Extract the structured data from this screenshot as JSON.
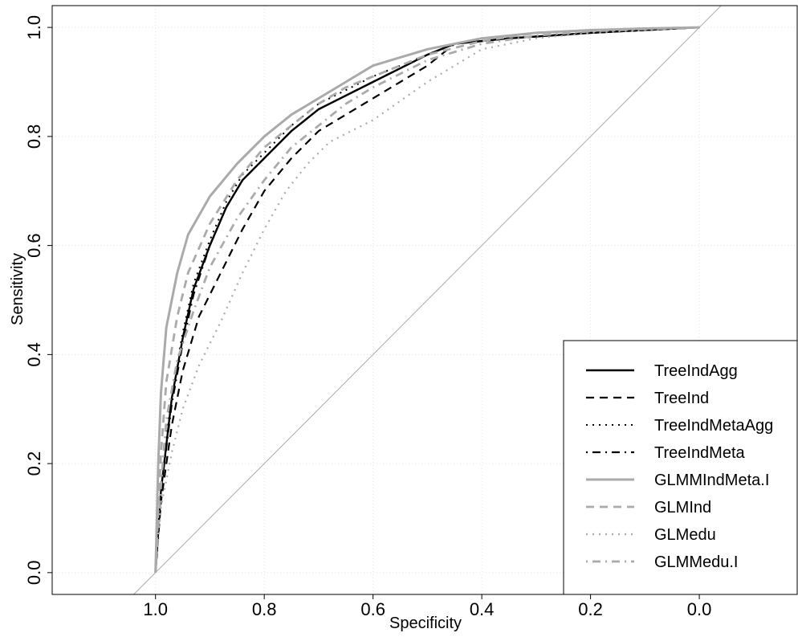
{
  "chart_data": {
    "type": "line",
    "title": "",
    "xlabel": "Specificity",
    "ylabel": "Sensitivity",
    "xlim": [
      1.19,
      -0.18
    ],
    "ylim": [
      -0.04,
      1.04
    ],
    "x_reversed": true,
    "grid": true,
    "legend_position": "bottom-right",
    "x_ticks": [
      1.0,
      0.8,
      0.6,
      0.4,
      0.2,
      0.0
    ],
    "x_tick_labels": [
      "1.0",
      "0.8",
      "0.6",
      "0.4",
      "0.2",
      "0.0"
    ],
    "y_ticks": [
      0.0,
      0.2,
      0.4,
      0.6,
      0.8,
      1.0
    ],
    "y_tick_labels": [
      "0.0",
      "0.2",
      "0.4",
      "0.6",
      "0.8",
      "1.0"
    ],
    "reference_line": {
      "from": [
        1.04,
        -0.04
      ],
      "to": [
        -0.04,
        1.04
      ],
      "color": "#aaaaaa"
    },
    "series": [
      {
        "name": "TreeIndAgg",
        "color": "#000000",
        "dash": "solid",
        "width": 2.4,
        "x": [
          1.0,
          0.99,
          0.97,
          0.95,
          0.93,
          0.9,
          0.87,
          0.84,
          0.8,
          0.75,
          0.7,
          0.6,
          0.5,
          0.45,
          0.35,
          0.2,
          0.0
        ],
        "y": [
          0.0,
          0.15,
          0.32,
          0.43,
          0.52,
          0.6,
          0.67,
          0.72,
          0.76,
          0.81,
          0.85,
          0.9,
          0.95,
          0.97,
          0.98,
          0.99,
          1.0
        ]
      },
      {
        "name": "TreeInd",
        "color": "#000000",
        "dash": "dashed",
        "width": 2.2,
        "x": [
          1.0,
          0.99,
          0.97,
          0.95,
          0.92,
          0.88,
          0.84,
          0.8,
          0.75,
          0.7,
          0.6,
          0.5,
          0.45,
          0.35,
          0.2,
          0.0
        ],
        "y": [
          0.0,
          0.13,
          0.27,
          0.37,
          0.47,
          0.55,
          0.63,
          0.7,
          0.76,
          0.81,
          0.87,
          0.93,
          0.97,
          0.98,
          0.99,
          1.0
        ]
      },
      {
        "name": "TreeIndMetaAgg",
        "color": "#000000",
        "dash": "dotted",
        "width": 2.0,
        "x": [
          1.0,
          0.99,
          0.97,
          0.95,
          0.93,
          0.9,
          0.87,
          0.84,
          0.8,
          0.75,
          0.7,
          0.6,
          0.5,
          0.45,
          0.35,
          0.2,
          0.0
        ],
        "y": [
          0.0,
          0.16,
          0.33,
          0.44,
          0.53,
          0.61,
          0.68,
          0.73,
          0.77,
          0.82,
          0.86,
          0.91,
          0.95,
          0.97,
          0.98,
          0.99,
          1.0
        ]
      },
      {
        "name": "TreeIndMeta",
        "color": "#000000",
        "dash": "dotdash",
        "width": 2.2,
        "x": [
          1.0,
          0.99,
          0.97,
          0.95,
          0.93,
          0.9,
          0.87,
          0.84,
          0.8,
          0.75,
          0.7,
          0.6,
          0.5,
          0.45,
          0.35,
          0.2,
          0.0
        ],
        "y": [
          0.0,
          0.15,
          0.31,
          0.42,
          0.51,
          0.6,
          0.67,
          0.72,
          0.76,
          0.81,
          0.85,
          0.9,
          0.95,
          0.97,
          0.98,
          0.99,
          1.0
        ]
      },
      {
        "name": "GLMMIndMeta.I",
        "color": "#aaaaaa",
        "dash": "solid",
        "width": 3.0,
        "x": [
          1.0,
          0.995,
          0.99,
          0.98,
          0.96,
          0.94,
          0.9,
          0.85,
          0.8,
          0.75,
          0.7,
          0.65,
          0.6,
          0.5,
          0.4,
          0.3,
          0.2,
          0.1,
          0.0
        ],
        "y": [
          0.0,
          0.2,
          0.33,
          0.45,
          0.55,
          0.62,
          0.69,
          0.75,
          0.8,
          0.84,
          0.87,
          0.9,
          0.93,
          0.96,
          0.98,
          0.99,
          0.995,
          0.998,
          1.0
        ]
      },
      {
        "name": "GLMInd",
        "color": "#aaaaaa",
        "dash": "dashed",
        "width": 2.8,
        "x": [
          1.0,
          0.99,
          0.98,
          0.96,
          0.94,
          0.9,
          0.85,
          0.8,
          0.75,
          0.7,
          0.65,
          0.6,
          0.5,
          0.4,
          0.3,
          0.2,
          0.1,
          0.0
        ],
        "y": [
          0.0,
          0.22,
          0.35,
          0.47,
          0.55,
          0.64,
          0.72,
          0.78,
          0.82,
          0.86,
          0.89,
          0.91,
          0.95,
          0.975,
          0.99,
          0.995,
          0.998,
          1.0
        ]
      },
      {
        "name": "GLMedu",
        "color": "#aaaaaa",
        "dash": "dotted",
        "width": 2.2,
        "x": [
          1.0,
          0.99,
          0.97,
          0.95,
          0.92,
          0.88,
          0.84,
          0.8,
          0.76,
          0.72,
          0.68,
          0.6,
          0.5,
          0.4,
          0.3,
          0.2,
          0.1,
          0.0
        ],
        "y": [
          0.0,
          0.12,
          0.22,
          0.3,
          0.38,
          0.46,
          0.55,
          0.63,
          0.7,
          0.75,
          0.79,
          0.83,
          0.9,
          0.96,
          0.98,
          0.99,
          0.995,
          1.0
        ]
      },
      {
        "name": "GLMMedu.I",
        "color": "#aaaaaa",
        "dash": "dotdash",
        "width": 2.8,
        "x": [
          1.0,
          0.99,
          0.98,
          0.96,
          0.93,
          0.9,
          0.85,
          0.8,
          0.75,
          0.7,
          0.65,
          0.6,
          0.5,
          0.4,
          0.3,
          0.2,
          0.1,
          0.0
        ],
        "y": [
          0.0,
          0.16,
          0.28,
          0.39,
          0.48,
          0.56,
          0.65,
          0.72,
          0.78,
          0.82,
          0.86,
          0.89,
          0.94,
          0.97,
          0.985,
          0.993,
          0.997,
          1.0
        ]
      }
    ]
  }
}
